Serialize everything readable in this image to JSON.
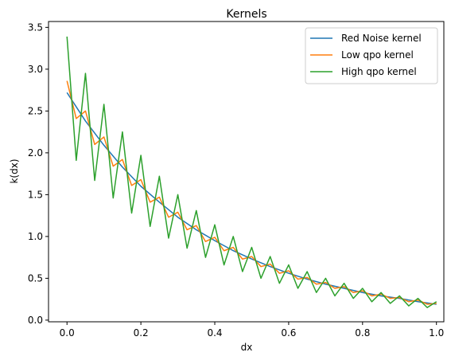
{
  "chart_data": {
    "type": "line",
    "title": "Kernels",
    "xlabel": "dx",
    "ylabel": "k(dx)",
    "xlim": [
      -0.05,
      1.02
    ],
    "ylim": [
      -0.02,
      3.57
    ],
    "xticks": [
      0.0,
      0.2,
      0.4,
      0.6,
      0.8,
      1.0
    ],
    "xtick_labels": [
      "0.0",
      "0.2",
      "0.4",
      "0.6",
      "0.8",
      "1.0"
    ],
    "yticks": [
      0.0,
      0.5,
      1.0,
      1.5,
      2.0,
      2.5,
      3.0,
      3.5
    ],
    "ytick_labels": [
      "0.0",
      "0.5",
      "1.0",
      "1.5",
      "2.0",
      "2.5",
      "3.0",
      "3.5"
    ],
    "grid": false,
    "legend_position": "top-right",
    "series": [
      {
        "name": "Red Noise kernel",
        "color": "#1f77b4",
        "x": [
          0.0,
          0.05,
          0.1,
          0.15,
          0.2,
          0.25,
          0.3,
          0.35,
          0.4,
          0.45,
          0.5,
          0.55,
          0.6,
          0.65,
          0.7,
          0.75,
          0.8,
          0.85,
          0.9,
          0.95,
          1.0
        ],
        "y": [
          2.72,
          2.38,
          2.09,
          1.83,
          1.6,
          1.41,
          1.23,
          1.08,
          0.95,
          0.83,
          0.73,
          0.64,
          0.56,
          0.49,
          0.43,
          0.38,
          0.33,
          0.29,
          0.26,
          0.22,
          0.19
        ]
      },
      {
        "name": "Low qpo kernel",
        "color": "#ff7f0e",
        "x": [
          0.0,
          0.025,
          0.05,
          0.075,
          0.1,
          0.125,
          0.15,
          0.175,
          0.2,
          0.225,
          0.25,
          0.275,
          0.3,
          0.325,
          0.35,
          0.375,
          0.4,
          0.425,
          0.45,
          0.475,
          0.5,
          0.525,
          0.55,
          0.575,
          0.6,
          0.625,
          0.65,
          0.675,
          0.7,
          0.725,
          0.75,
          0.775,
          0.8,
          0.825,
          0.85,
          0.875,
          0.9,
          0.925,
          0.95,
          0.975,
          1.0
        ],
        "y": [
          2.86,
          2.41,
          2.5,
          2.1,
          2.19,
          1.84,
          1.92,
          1.61,
          1.68,
          1.41,
          1.47,
          1.23,
          1.29,
          1.08,
          1.13,
          0.94,
          0.99,
          0.83,
          0.87,
          0.73,
          0.76,
          0.64,
          0.67,
          0.56,
          0.59,
          0.49,
          0.51,
          0.43,
          0.45,
          0.38,
          0.4,
          0.33,
          0.35,
          0.29,
          0.31,
          0.26,
          0.27,
          0.22,
          0.24,
          0.19,
          0.2
        ]
      },
      {
        "name": "High qpo kernel",
        "color": "#2ca02c",
        "x": [
          0.0,
          0.025,
          0.05,
          0.075,
          0.1,
          0.125,
          0.15,
          0.175,
          0.2,
          0.225,
          0.25,
          0.275,
          0.3,
          0.325,
          0.35,
          0.375,
          0.4,
          0.425,
          0.45,
          0.475,
          0.5,
          0.525,
          0.55,
          0.575,
          0.6,
          0.625,
          0.65,
          0.675,
          0.7,
          0.725,
          0.75,
          0.775,
          0.8,
          0.825,
          0.85,
          0.875,
          0.9,
          0.925,
          0.95,
          0.975,
          1.0
        ],
        "y": [
          3.39,
          1.91,
          2.95,
          1.67,
          2.58,
          1.46,
          2.25,
          1.28,
          1.97,
          1.12,
          1.72,
          0.98,
          1.5,
          0.86,
          1.31,
          0.75,
          1.14,
          0.66,
          1.0,
          0.58,
          0.87,
          0.5,
          0.76,
          0.44,
          0.66,
          0.38,
          0.58,
          0.33,
          0.5,
          0.29,
          0.44,
          0.26,
          0.38,
          0.22,
          0.33,
          0.2,
          0.29,
          0.17,
          0.26,
          0.15,
          0.22
        ]
      }
    ]
  }
}
